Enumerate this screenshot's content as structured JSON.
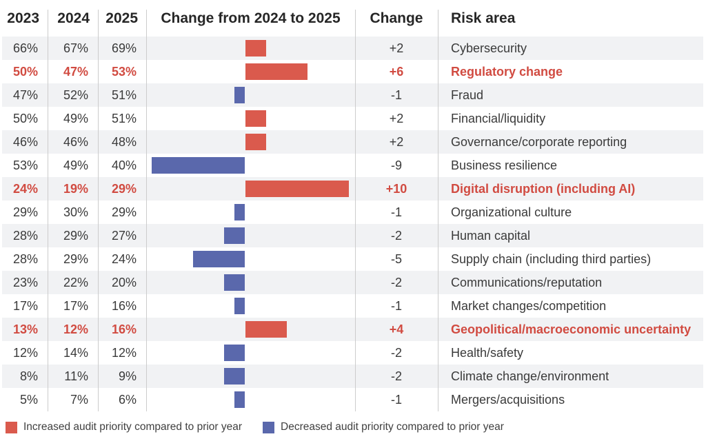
{
  "colors": {
    "increase_bar": "#DA5A4D",
    "decrease_bar": "#5A68AC",
    "highlight_text": "#D14B41",
    "row_stripe": "#F1F2F4",
    "separator": "#CCCCCC"
  },
  "header": {
    "col_2023": "2023",
    "col_2024": "2024",
    "col_2025": "2025",
    "col_chart": "Change from 2024 to 2025",
    "col_change": "Change",
    "col_risk": "Risk area"
  },
  "legend": {
    "increase_label": "Increased audit priority compared to prior year",
    "decrease_label": "Decreased audit priority compared to prior year"
  },
  "chart_data": {
    "type": "bar",
    "orientation": "horizontal",
    "title": "Change from 2024 to 2025",
    "unit": "percentage points",
    "xlim": [
      -10,
      10
    ],
    "categories": [
      "Cybersecurity",
      "Regulatory change",
      "Fraud",
      "Financial/liquidity",
      "Governance/corporate reporting",
      "Business resilience",
      "Digital disruption (including AI)",
      "Organizational culture",
      "Human capital",
      "Supply chain (including third parties)",
      "Communications/reputation",
      "Market changes/competition",
      "Geopolitical/macroeconomic uncertainty",
      "Health/safety",
      "Climate change/environment",
      "Mergers/acquisitions"
    ],
    "change_values": [
      2,
      6,
      -1,
      2,
      2,
      -9,
      10,
      -1,
      -2,
      -5,
      -2,
      -1,
      4,
      -2,
      -2,
      -1
    ],
    "series": [
      {
        "name": "2023",
        "values": [
          66,
          50,
          47,
          50,
          46,
          53,
          24,
          29,
          28,
          28,
          23,
          17,
          13,
          12,
          8,
          5
        ]
      },
      {
        "name": "2024",
        "values": [
          67,
          47,
          52,
          49,
          46,
          49,
          19,
          30,
          29,
          29,
          22,
          17,
          12,
          14,
          11,
          7
        ]
      },
      {
        "name": "2025",
        "values": [
          69,
          53,
          51,
          51,
          48,
          40,
          29,
          29,
          27,
          24,
          20,
          16,
          16,
          12,
          9,
          6
        ]
      }
    ],
    "highlighted_categories": [
      "Regulatory change",
      "Digital disruption (including AI)",
      "Geopolitical/macroeconomic uncertainty"
    ]
  },
  "rows": [
    {
      "y2023": "66%",
      "y2024": "67%",
      "y2025": "69%",
      "change": 2,
      "change_label": "+2",
      "risk": "Cybersecurity",
      "highlight": false
    },
    {
      "y2023": "50%",
      "y2024": "47%",
      "y2025": "53%",
      "change": 6,
      "change_label": "+6",
      "risk": "Regulatory change",
      "highlight": true
    },
    {
      "y2023": "47%",
      "y2024": "52%",
      "y2025": "51%",
      "change": -1,
      "change_label": "-1",
      "risk": "Fraud",
      "highlight": false
    },
    {
      "y2023": "50%",
      "y2024": "49%",
      "y2025": "51%",
      "change": 2,
      "change_label": "+2",
      "risk": "Financial/liquidity",
      "highlight": false
    },
    {
      "y2023": "46%",
      "y2024": "46%",
      "y2025": "48%",
      "change": 2,
      "change_label": "+2",
      "risk": "Governance/corporate reporting",
      "highlight": false
    },
    {
      "y2023": "53%",
      "y2024": "49%",
      "y2025": "40%",
      "change": -9,
      "change_label": "-9",
      "risk": "Business resilience",
      "highlight": false
    },
    {
      "y2023": "24%",
      "y2024": "19%",
      "y2025": "29%",
      "change": 10,
      "change_label": "+10",
      "risk": "Digital disruption (including AI)",
      "highlight": true
    },
    {
      "y2023": "29%",
      "y2024": "30%",
      "y2025": "29%",
      "change": -1,
      "change_label": "-1",
      "risk": "Organizational culture",
      "highlight": false
    },
    {
      "y2023": "28%",
      "y2024": "29%",
      "y2025": "27%",
      "change": -2,
      "change_label": "-2",
      "risk": "Human capital",
      "highlight": false
    },
    {
      "y2023": "28%",
      "y2024": "29%",
      "y2025": "24%",
      "change": -5,
      "change_label": "-5",
      "risk": "Supply chain (including third parties)",
      "highlight": false
    },
    {
      "y2023": "23%",
      "y2024": "22%",
      "y2025": "20%",
      "change": -2,
      "change_label": "-2",
      "risk": "Communications/reputation",
      "highlight": false
    },
    {
      "y2023": "17%",
      "y2024": "17%",
      "y2025": "16%",
      "change": -1,
      "change_label": "-1",
      "risk": "Market changes/competition",
      "highlight": false
    },
    {
      "y2023": "13%",
      "y2024": "12%",
      "y2025": "16%",
      "change": 4,
      "change_label": "+4",
      "risk": "Geopolitical/macroeconomic uncertainty",
      "highlight": true
    },
    {
      "y2023": "12%",
      "y2024": "14%",
      "y2025": "12%",
      "change": -2,
      "change_label": "-2",
      "risk": "Health/safety",
      "highlight": false
    },
    {
      "y2023": "8%",
      "y2024": "11%",
      "y2025": "9%",
      "change": -2,
      "change_label": "-2",
      "risk": "Climate change/environment",
      "highlight": false
    },
    {
      "y2023": "5%",
      "y2024": "7%",
      "y2025": "6%",
      "change": -1,
      "change_label": "-1",
      "risk": "Mergers/acquisitions",
      "highlight": false
    }
  ]
}
